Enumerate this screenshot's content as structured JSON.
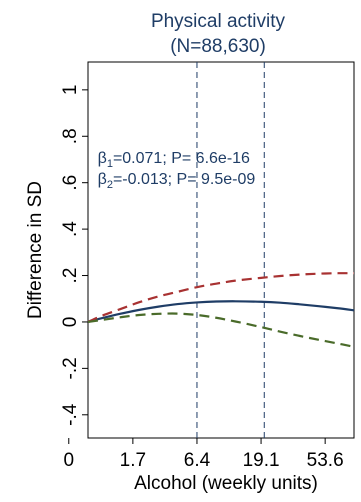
{
  "chart_data": {
    "type": "line",
    "title": "Physical activity",
    "subtitle": "(N=88,630)",
    "xlabel": "Alcohol (weekly units)",
    "ylabel": "Difference in SD",
    "x_ticks": [
      "0",
      "1.7",
      "6.4",
      "19.1",
      "53.6"
    ],
    "x_tick_positions": [
      0,
      1,
      2,
      3,
      4
    ],
    "xlim": [
      0.3,
      4.45
    ],
    "y_ticks": [
      {
        "value": 1,
        "label": "1"
      },
      {
        "value": 0.8,
        "label": ".8"
      },
      {
        "value": 0.6,
        "label": ".6"
      },
      {
        "value": 0.4,
        "label": ".4"
      },
      {
        "value": 0.2,
        "label": ".2"
      },
      {
        "value": 0,
        "label": "0"
      },
      {
        "value": -0.2,
        "label": "-.2"
      },
      {
        "value": -0.4,
        "label": "-.4"
      }
    ],
    "ylim": [
      -0.5,
      1.12
    ],
    "grid": false,
    "reference_lines_x": [
      2.0,
      3.05
    ],
    "annotations": [
      {
        "sym": "β",
        "sub": "1",
        "text": "=0.071; P= 6.6e-16",
        "x": 0.45,
        "y": 0.685
      },
      {
        "sym": "β",
        "sub": "2",
        "text": "=-0.013; P= 9.5e-09",
        "x": 0.45,
        "y": 0.595
      }
    ],
    "series": [
      {
        "role": "estimate",
        "color": "#1f3d66",
        "dash": "solid",
        "x": [
          0.3,
          0.5,
          0.8,
          1.1,
          1.4,
          1.7,
          2.0,
          2.3,
          2.6,
          3.0,
          3.3,
          3.6,
          3.9,
          4.2,
          4.45
        ],
        "y": [
          0.0,
          0.015,
          0.035,
          0.052,
          0.066,
          0.077,
          0.084,
          0.088,
          0.089,
          0.087,
          0.083,
          0.076,
          0.068,
          0.059,
          0.05
        ]
      },
      {
        "role": "upper-ci",
        "color": "#a83232",
        "dash": "dashed",
        "x": [
          0.3,
          0.5,
          0.8,
          1.1,
          1.4,
          1.7,
          2.0,
          2.3,
          2.6,
          3.0,
          3.3,
          3.6,
          3.9,
          4.2,
          4.45
        ],
        "y": [
          0.0,
          0.025,
          0.055,
          0.085,
          0.11,
          0.13,
          0.15,
          0.165,
          0.178,
          0.19,
          0.198,
          0.204,
          0.208,
          0.21,
          0.21
        ]
      },
      {
        "role": "lower-ci",
        "color": "#4a6b2a",
        "dash": "dashed",
        "x": [
          0.3,
          0.5,
          0.8,
          1.1,
          1.4,
          1.7,
          2.0,
          2.3,
          2.6,
          3.0,
          3.3,
          3.6,
          3.9,
          4.2,
          4.45
        ],
        "y": [
          0.0,
          0.008,
          0.02,
          0.03,
          0.035,
          0.036,
          0.03,
          0.018,
          0.002,
          -0.022,
          -0.042,
          -0.06,
          -0.077,
          -0.093,
          -0.107
        ]
      }
    ]
  }
}
